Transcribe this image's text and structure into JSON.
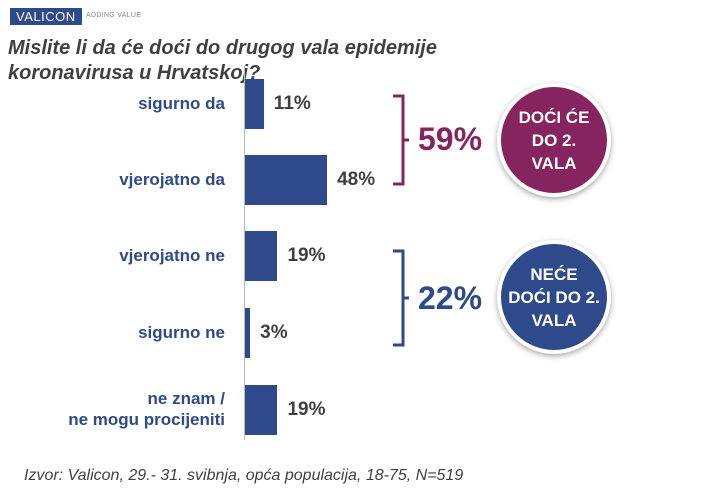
{
  "logo": {
    "brand": "VALICON",
    "tagline": "ADDING VALUE"
  },
  "colors": {
    "bar": "#2e4a8a",
    "yes": "#85245e",
    "no": "#2e4a8a"
  },
  "chart_data": {
    "type": "bar",
    "orientation": "horizontal",
    "title": "Mislite li da će doći do drugog vala epidemije koronavirusa u Hrvatskoj?",
    "categories": [
      "sigurno da",
      "vjerojatno da",
      "vjerojatno ne",
      "sigurno ne",
      "ne znam /\nne mogu procijeniti"
    ],
    "values": [
      11,
      48,
      19,
      3,
      19
    ],
    "value_labels": [
      "11%",
      "48%",
      "19%",
      "3%",
      "19%"
    ],
    "unit": "%",
    "groups": [
      {
        "total": "59%",
        "label": "DOĆI ĆE DO 2. VALA",
        "color": "#85245e"
      },
      {
        "total": "22%",
        "label": "NEĆE DOĆI DO 2. VALA",
        "color": "#2e4a8a"
      }
    ]
  },
  "footer": "Izvor: Valicon, 29.- 31. svibnja, opća populacija, 18-75, N=519"
}
